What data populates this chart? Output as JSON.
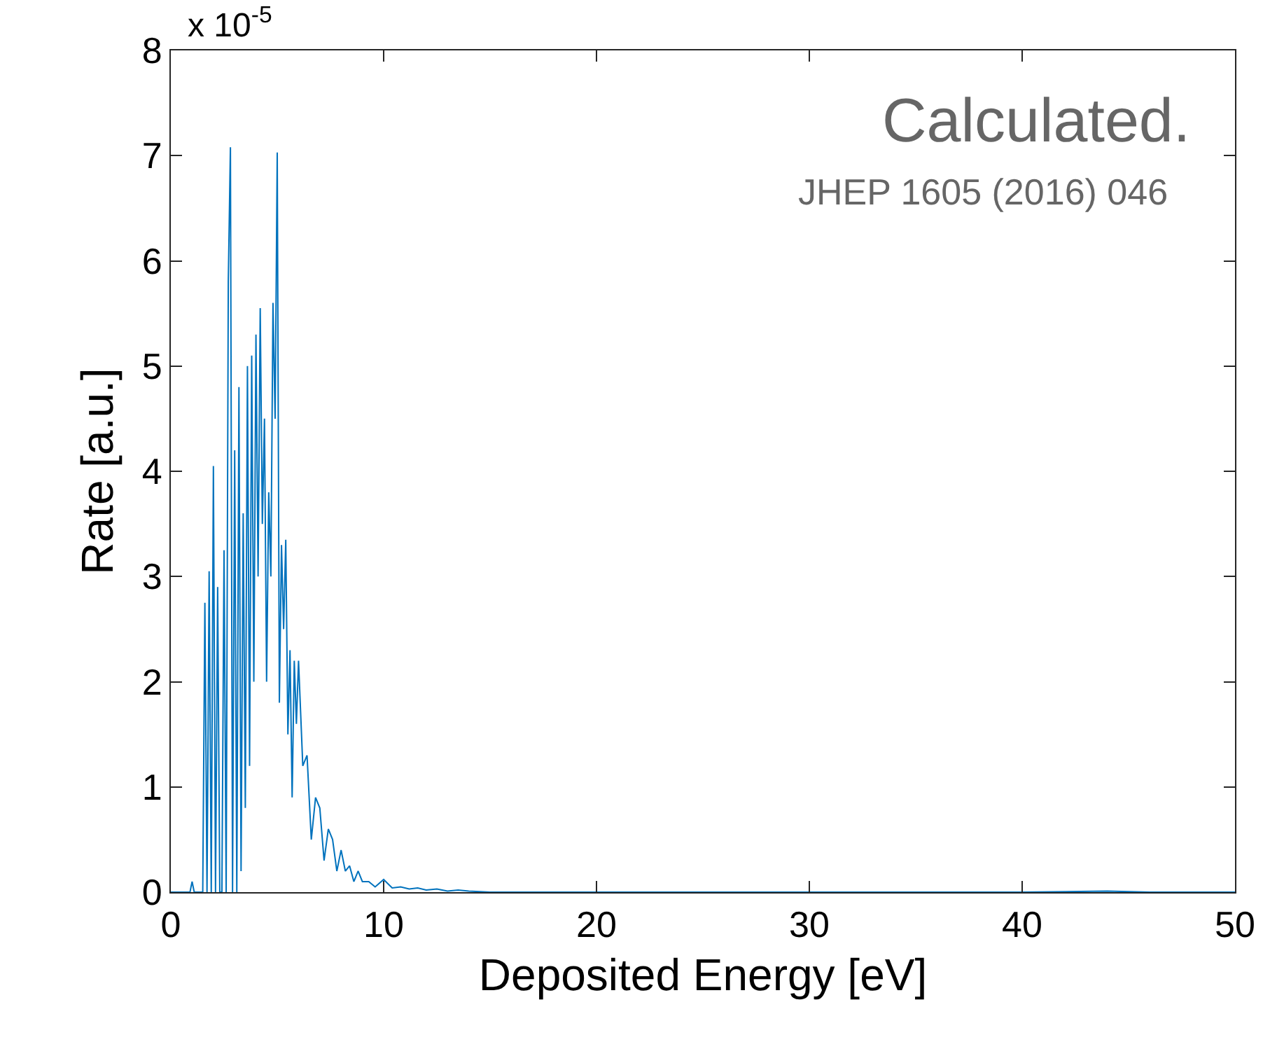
{
  "chart_data": {
    "type": "line",
    "xlabel": "Deposited Energy [eV]",
    "ylabel": "Rate [a.u.]",
    "annotations": [
      "x 10$^{-5}$",
      "Calculated.",
      "JHEP 1605 (2016) 046"
    ],
    "xlim": [
      0,
      50
    ],
    "xticks": [
      0,
      10,
      20,
      30,
      40,
      50
    ],
    "ylim": [
      0,
      8
    ],
    "yticks": [
      0,
      1,
      2,
      3,
      4,
      5,
      6,
      7,
      8
    ],
    "marker": "none",
    "line_style": "solid",
    "series": [
      {
        "color": "#0072bd",
        "x": [
          0,
          0.5,
          0.9,
          1.0,
          1.1,
          1.3,
          1.5,
          1.6,
          1.7,
          1.8,
          1.9,
          2.0,
          2.1,
          2.2,
          2.3,
          2.4,
          2.5,
          2.6,
          2.7,
          2.8,
          2.9,
          3.0,
          3.1,
          3.2,
          3.3,
          3.4,
          3.5,
          3.6,
          3.7,
          3.8,
          3.9,
          4.0,
          4.1,
          4.2,
          4.3,
          4.4,
          4.5,
          4.6,
          4.7,
          4.8,
          4.9,
          5.0,
          5.1,
          5.2,
          5.3,
          5.4,
          5.5,
          5.6,
          5.7,
          5.8,
          5.9,
          6.0,
          6.2,
          6.4,
          6.6,
          6.8,
          7.0,
          7.2,
          7.4,
          7.6,
          7.8,
          8.0,
          8.2,
          8.4,
          8.6,
          8.8,
          9.0,
          9.3,
          9.6,
          10.0,
          10.4,
          10.8,
          11.2,
          11.6,
          12,
          12.5,
          13,
          13.5,
          14,
          15,
          16,
          20,
          30,
          40,
          44,
          46,
          50
        ],
        "values": [
          0,
          0,
          0,
          0.1,
          0,
          0,
          0,
          2.75,
          0,
          3.05,
          0,
          4.05,
          0,
          2.9,
          0,
          0,
          3.25,
          0,
          5.8,
          7.08,
          0,
          4.2,
          0,
          4.8,
          0.2,
          3.6,
          0.8,
          5.0,
          1.2,
          5.1,
          2.0,
          5.3,
          3.0,
          5.55,
          3.5,
          4.5,
          2.0,
          3.8,
          3.0,
          5.6,
          4.5,
          7.03,
          1.8,
          3.3,
          2.5,
          3.35,
          1.5,
          2.3,
          0.9,
          2.2,
          1.6,
          2.2,
          1.2,
          1.3,
          0.5,
          0.9,
          0.8,
          0.3,
          0.6,
          0.5,
          0.2,
          0.4,
          0.2,
          0.25,
          0.1,
          0.2,
          0.1,
          0.1,
          0.05,
          0.12,
          0.04,
          0.05,
          0.03,
          0.04,
          0.02,
          0.03,
          0.01,
          0.02,
          0.01,
          0,
          0,
          0,
          0,
          0,
          0.01,
          0,
          0
        ]
      }
    ]
  }
}
